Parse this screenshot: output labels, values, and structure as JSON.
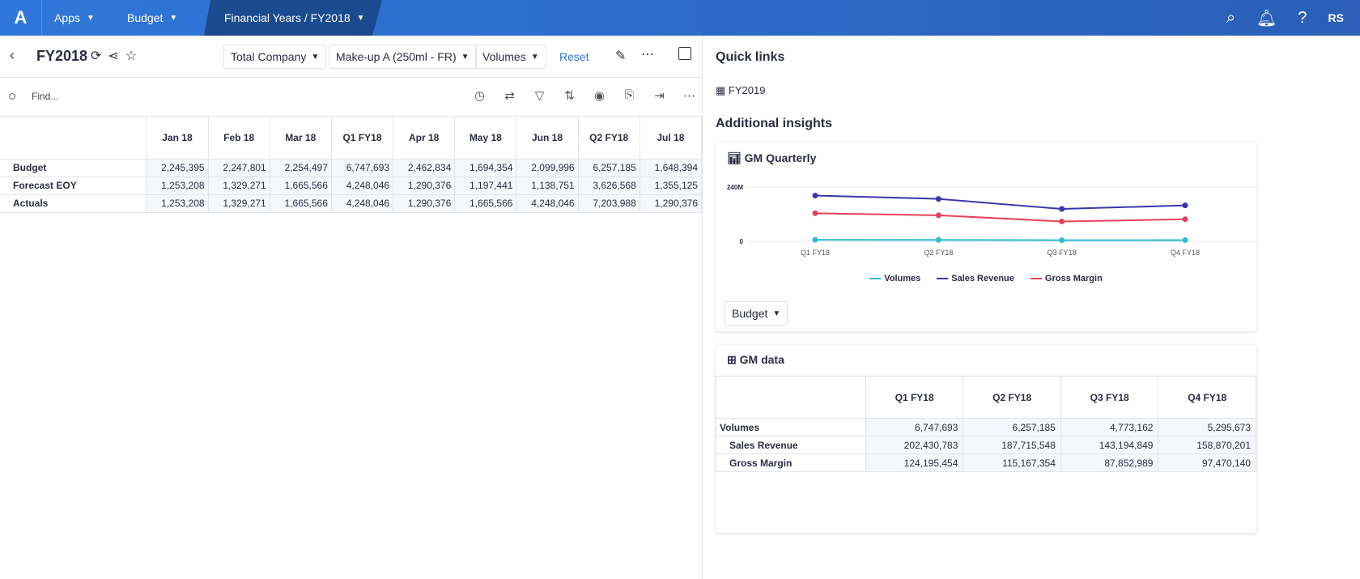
{
  "topbar": {
    "logo": "A",
    "crumbs": [
      "Apps",
      "Budget",
      "Financial Years / FY2018"
    ],
    "user": "RS"
  },
  "header": {
    "title": "FY2018",
    "dropdowns": [
      "Total Company",
      "Make-up A (250ml - FR)",
      "Volumes"
    ],
    "reset": "Reset"
  },
  "find": {
    "placeholder": "Find..."
  },
  "grid": {
    "columns": [
      "Jan 18",
      "Feb 18",
      "Mar 18",
      "Q1 FY18",
      "Apr 18",
      "May 18",
      "Jun 18",
      "Q2 FY18",
      "Jul 18"
    ],
    "rows": [
      {
        "label": "Budget",
        "values": [
          "2,245,395",
          "2,247,801",
          "2,254,497",
          "6,747,693",
          "2,462,834",
          "1,694,354",
          "2,099,996",
          "6,257,185",
          "1,648,394"
        ]
      },
      {
        "label": "Forecast EOY",
        "values": [
          "1,253,208",
          "1,329,271",
          "1,665,566",
          "4,248,046",
          "1,290,376",
          "1,197,441",
          "1,138,751",
          "3,626,568",
          "1,355,125"
        ]
      },
      {
        "label": "Actuals",
        "values": [
          "1,253,208",
          "1,329,271",
          "1,665,566",
          "4,248,046",
          "1,290,376",
          "1,665,566",
          "4,248,046",
          "7,203,988",
          "1,290,376"
        ]
      }
    ]
  },
  "right": {
    "quick_links": "Quick links",
    "link": "FY2019",
    "insights": "Additional insights",
    "chart_title": "GM Quarterly",
    "chart_dropdown": "Budget",
    "table_title": "GM data"
  },
  "chart_data": {
    "type": "line",
    "categories": [
      "Q1 FY18",
      "Q2 FY18",
      "Q3 FY18",
      "Q4 FY18"
    ],
    "y_ticks": [
      "0",
      "240M"
    ],
    "ylim": [
      0,
      240000000
    ],
    "legend": "bottom",
    "grid": true,
    "series": [
      {
        "name": "Volumes",
        "color": "#2bbfcf",
        "values": [
          6747693,
          6257185,
          4773162,
          5295673
        ]
      },
      {
        "name": "Sales Revenue",
        "color": "#3b37a8",
        "values": [
          202430783,
          187715548,
          143194849,
          158870201
        ]
      },
      {
        "name": "Gross Margin",
        "color": "#e8405e",
        "values": [
          124195454,
          115167354,
          87852989,
          97470140
        ]
      }
    ]
  },
  "gm_table": {
    "columns": [
      "Q1 FY18",
      "Q2 FY18",
      "Q3 FY18",
      "Q4 FY18"
    ],
    "rows": [
      {
        "label": "Volumes",
        "values": [
          "6,747,693",
          "6,257,185",
          "4,773,162",
          "5,295,673"
        ]
      },
      {
        "label": "Sales Revenue",
        "values": [
          "202,430,783",
          "187,715,548",
          "143,194,849",
          "158,870,201"
        ]
      },
      {
        "label": "Gross Margin",
        "values": [
          "124,195,454",
          "115,167,354",
          "87,852,989",
          "97,470,140"
        ]
      }
    ]
  }
}
